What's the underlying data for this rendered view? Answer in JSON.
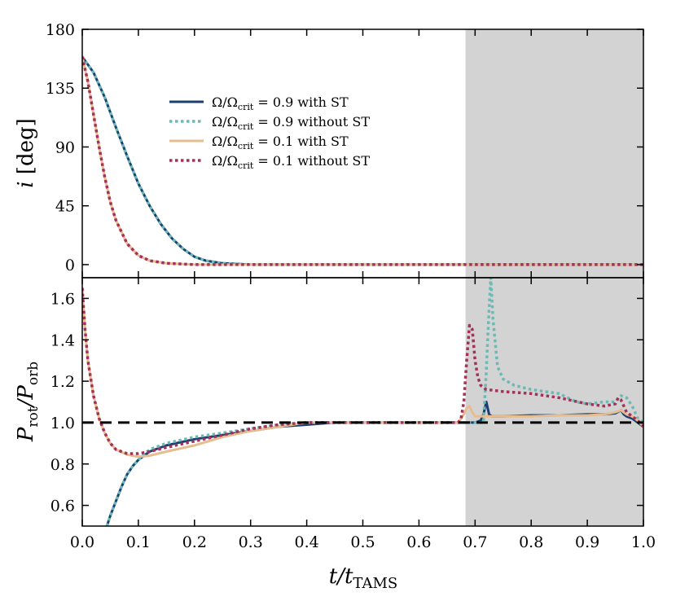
{
  "chart_data": [
    {
      "type": "line",
      "panel": "top",
      "ylabel": "i [deg]",
      "ylabel_var": "i",
      "ylabel_unit": " [deg]",
      "xlim": [
        0.0,
        1.0
      ],
      "ylim": [
        -10,
        180
      ],
      "yticks": [
        0,
        45,
        90,
        135,
        180
      ],
      "ytick_labels": [
        "0",
        "45",
        "90",
        "135",
        "180"
      ],
      "shaded_region": {
        "x": [
          0.683,
          1.0
        ],
        "color": "#d3d3d3"
      },
      "legend": {
        "placement": "upper-center",
        "entries": [
          {
            "pre": "Ω/Ω",
            "sub": "crit",
            "post": " = 0.9 with ST",
            "color": "#1b3f73",
            "style": "solid"
          },
          {
            "pre": "Ω/Ω",
            "sub": "crit",
            "post": " = 0.9 without ST",
            "color": "#6cbab3",
            "style": "dotted"
          },
          {
            "pre": "Ω/Ω",
            "sub": "crit",
            "post": " = 0.1 with ST",
            "color": "#e7bd90",
            "style": "solid"
          },
          {
            "pre": "Ω/Ω",
            "sub": "crit",
            "post": " = 0.1 without ST",
            "color": "#a3315a",
            "style": "dotted"
          }
        ]
      },
      "series": [
        {
          "name": "Ω/Ωcrit = 0.9 with ST",
          "color": "#1b3f73",
          "style": "solid",
          "width": 3,
          "x": [
            0.0,
            0.02,
            0.04,
            0.06,
            0.08,
            0.1,
            0.12,
            0.14,
            0.16,
            0.18,
            0.2,
            0.22,
            0.25,
            0.3,
            1.0
          ],
          "y": [
            159,
            147,
            128,
            105,
            83,
            62,
            45,
            31,
            20,
            12,
            6,
            3,
            1,
            0,
            0
          ]
        },
        {
          "name": "Ω/Ωcrit = 0.9 without ST",
          "color": "#6cbab3",
          "style": "dotted",
          "width": 3.5,
          "x": [
            0.0,
            0.02,
            0.04,
            0.06,
            0.08,
            0.1,
            0.12,
            0.14,
            0.16,
            0.18,
            0.2,
            0.22,
            0.25,
            0.3,
            1.0
          ],
          "y": [
            159,
            147,
            128,
            105,
            83,
            62,
            45,
            31,
            20,
            12,
            6,
            3,
            1,
            0,
            0
          ]
        },
        {
          "name": "Ω/Ωcrit = 0.1 with ST",
          "color": "#e7bd90",
          "style": "solid",
          "width": 3,
          "x": [
            0.0,
            0.01,
            0.02,
            0.03,
            0.04,
            0.05,
            0.06,
            0.08,
            0.1,
            0.12,
            0.15,
            0.2,
            0.25,
            1.0
          ],
          "y": [
            159,
            140,
            115,
            90,
            67,
            48,
            34,
            16,
            7,
            3,
            1,
            0,
            0,
            0
          ]
        },
        {
          "name": "Ω/Ωcrit = 0.1 without ST",
          "color": "#a3315a",
          "style": "dotted",
          "width": 3.5,
          "x": [
            0.0,
            0.01,
            0.02,
            0.03,
            0.04,
            0.05,
            0.06,
            0.08,
            0.1,
            0.12,
            0.15,
            0.2,
            0.25,
            1.0
          ],
          "y": [
            159,
            140,
            115,
            90,
            67,
            48,
            34,
            16,
            7,
            3,
            1,
            0,
            0,
            0
          ]
        }
      ]
    },
    {
      "type": "line",
      "panel": "bottom",
      "xlabel": "t/tTAMS",
      "xlabel_var": "t/t",
      "xlabel_sub": "TAMS",
      "ylabel": "Prot/Porb",
      "ylabel_p1": "P",
      "ylabel_s1": "rot",
      "ylabel_mid": "/P",
      "ylabel_s2": "orb",
      "xlim": [
        0.0,
        1.0
      ],
      "ylim": [
        0.5,
        1.7
      ],
      "xticks": [
        0.0,
        0.1,
        0.2,
        0.3,
        0.4,
        0.5,
        0.6,
        0.7,
        0.8,
        0.9,
        1.0
      ],
      "xtick_labels": [
        "0.0",
        "0.1",
        "0.2",
        "0.3",
        "0.4",
        "0.5",
        "0.6",
        "0.7",
        "0.8",
        "0.9",
        "1.0"
      ],
      "yticks": [
        0.6,
        0.8,
        1.0,
        1.2,
        1.4,
        1.6
      ],
      "ytick_labels": [
        "0.6",
        "0.8",
        "1.0",
        "1.2",
        "1.4",
        "1.6"
      ],
      "shaded_region": {
        "x": [
          0.683,
          1.0
        ],
        "color": "#d3d3d3"
      },
      "reference_line": {
        "y": 1.0,
        "style": "dashed",
        "color": "#000000"
      },
      "series": [
        {
          "name": "Ω/Ωcrit = 0.9 with ST",
          "color": "#1b3f73",
          "style": "solid",
          "width": 3,
          "x": [
            0.044,
            0.05,
            0.06,
            0.07,
            0.08,
            0.09,
            0.1,
            0.12,
            0.15,
            0.2,
            0.25,
            0.3,
            0.35,
            0.4,
            0.45,
            0.5,
            0.6,
            0.68,
            0.7,
            0.71,
            0.715,
            0.72,
            0.725,
            0.73,
            0.75,
            0.8,
            0.85,
            0.9,
            0.93,
            0.95,
            0.96,
            0.965,
            0.97,
            0.98,
            0.99,
            1.0
          ],
          "y": [
            0.5,
            0.55,
            0.62,
            0.69,
            0.75,
            0.79,
            0.82,
            0.86,
            0.89,
            0.92,
            0.94,
            0.96,
            0.98,
            0.99,
            1.0,
            1.0,
            1.0,
            1.0,
            1.0,
            1.01,
            1.04,
            1.1,
            1.04,
            1.03,
            1.03,
            1.035,
            1.035,
            1.04,
            1.04,
            1.045,
            1.06,
            1.04,
            1.03,
            1.02,
            1.0,
            0.98
          ]
        },
        {
          "name": "Ω/Ωcrit = 0.9 without ST",
          "color": "#6cbab3",
          "style": "dotted",
          "width": 3.5,
          "x": [
            0.044,
            0.05,
            0.06,
            0.07,
            0.08,
            0.09,
            0.1,
            0.12,
            0.15,
            0.2,
            0.25,
            0.3,
            0.35,
            0.4,
            0.45,
            0.5,
            0.6,
            0.68,
            0.7,
            0.715,
            0.72,
            0.725,
            0.728,
            0.732,
            0.74,
            0.75,
            0.77,
            0.8,
            0.85,
            0.88,
            0.9,
            0.93,
            0.95,
            0.96,
            0.97,
            0.98,
            0.99,
            1.0
          ],
          "y": [
            0.5,
            0.55,
            0.62,
            0.69,
            0.75,
            0.79,
            0.82,
            0.87,
            0.9,
            0.93,
            0.95,
            0.97,
            0.99,
            1.0,
            1.0,
            1.0,
            1.0,
            1.0,
            1.0,
            1.0,
            1.25,
            1.55,
            1.7,
            1.5,
            1.27,
            1.21,
            1.18,
            1.16,
            1.14,
            1.1,
            1.09,
            1.1,
            1.1,
            1.13,
            1.12,
            1.08,
            1.02,
            1.0
          ]
        },
        {
          "name": "Ω/Ωcrit = 0.1 with ST",
          "color": "#e7bd90",
          "style": "solid",
          "width": 3,
          "x": [
            0.0,
            0.005,
            0.01,
            0.02,
            0.03,
            0.04,
            0.05,
            0.06,
            0.08,
            0.1,
            0.12,
            0.15,
            0.2,
            0.25,
            0.3,
            0.35,
            0.4,
            0.45,
            0.5,
            0.6,
            0.67,
            0.68,
            0.685,
            0.69,
            0.695,
            0.7,
            0.72,
            0.75,
            0.8,
            0.85,
            0.9,
            0.93,
            0.95,
            0.96,
            0.97,
            0.98,
            0.99,
            1.0
          ],
          "y": [
            1.65,
            1.45,
            1.3,
            1.13,
            1.02,
            0.95,
            0.9,
            0.87,
            0.845,
            0.835,
            0.84,
            0.86,
            0.89,
            0.93,
            0.96,
            0.98,
            1.0,
            1.0,
            1.0,
            1.0,
            1.0,
            1.04,
            1.07,
            1.08,
            1.05,
            1.03,
            1.03,
            1.03,
            1.03,
            1.035,
            1.035,
            1.04,
            1.05,
            1.06,
            1.04,
            1.03,
            1.01,
            0.98
          ]
        },
        {
          "name": "Ω/Ωcrit = 0.1 without ST",
          "color": "#a3315a",
          "style": "dotted",
          "width": 3.5,
          "x": [
            0.0,
            0.005,
            0.01,
            0.02,
            0.03,
            0.04,
            0.05,
            0.06,
            0.08,
            0.1,
            0.12,
            0.15,
            0.2,
            0.25,
            0.3,
            0.35,
            0.4,
            0.45,
            0.5,
            0.6,
            0.67,
            0.675,
            0.68,
            0.685,
            0.69,
            0.695,
            0.7,
            0.705,
            0.71,
            0.72,
            0.75,
            0.8,
            0.85,
            0.9,
            0.93,
            0.95,
            0.955,
            0.96,
            0.965,
            0.97,
            0.98,
            0.99,
            1.0
          ],
          "y": [
            1.65,
            1.45,
            1.3,
            1.13,
            1.02,
            0.95,
            0.9,
            0.87,
            0.85,
            0.85,
            0.86,
            0.88,
            0.91,
            0.94,
            0.97,
            0.99,
            1.0,
            1.0,
            1.0,
            1.0,
            1.0,
            1.02,
            1.1,
            1.3,
            1.47,
            1.45,
            1.3,
            1.22,
            1.18,
            1.16,
            1.15,
            1.14,
            1.12,
            1.09,
            1.08,
            1.09,
            1.12,
            1.11,
            1.08,
            1.05,
            1.03,
            1.01,
            0.98
          ]
        }
      ]
    }
  ]
}
